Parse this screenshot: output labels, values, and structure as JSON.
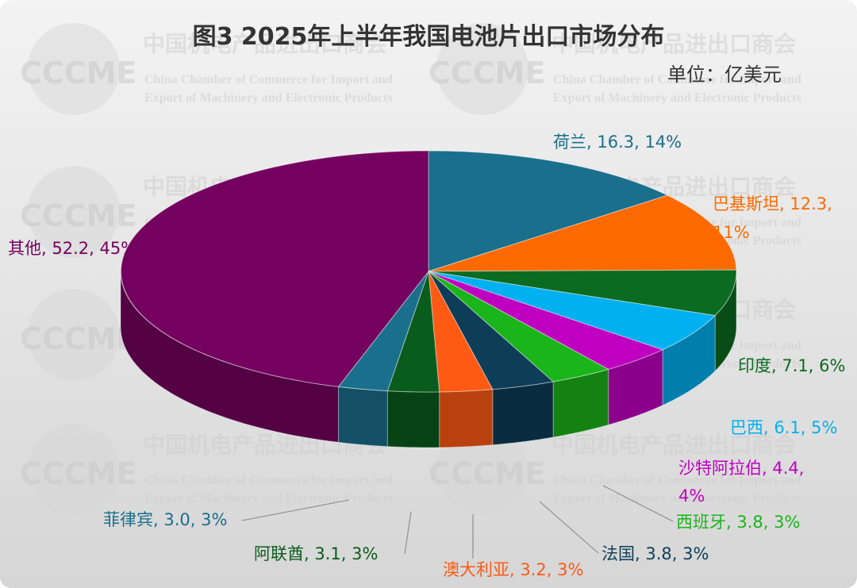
{
  "chart_data": {
    "type": "pie",
    "title": "图3   2025年上半年我国电池片出口市场分布",
    "unit_label": "单位：亿美元",
    "slices": [
      {
        "name": "荷兰",
        "value": 16.3,
        "percent": "14%",
        "label": "荷兰, 16.3, 14%",
        "color": "#1a6f8c"
      },
      {
        "name": "巴基斯坦",
        "value": 12.3,
        "percent": "11%",
        "label_line1": "巴基斯坦, 12.3,",
        "label_line2": "11%",
        "color": "#ff6a00"
      },
      {
        "name": "印度",
        "value": 7.1,
        "percent": "6%",
        "label": "印度, 7.1, 6%",
        "color": "#0b6b21"
      },
      {
        "name": "巴西",
        "value": 6.1,
        "percent": "5%",
        "label": "巴西, 6.1, 5%",
        "color": "#00b0f0"
      },
      {
        "name": "沙特阿拉伯",
        "value": 4.4,
        "percent": "4%",
        "label_line1": "沙特阿拉伯, 4.4,",
        "label_line2": "4%",
        "color": "#c000c0"
      },
      {
        "name": "西班牙",
        "value": 3.8,
        "percent": "3%",
        "label": "西班牙, 3.8, 3%",
        "color": "#1ab51a"
      },
      {
        "name": "法国",
        "value": 3.8,
        "percent": "3%",
        "label": "法国, 3.8, 3%",
        "color": "#0e3d57"
      },
      {
        "name": "澳大利亚",
        "value": 3.2,
        "percent": "3%",
        "label": "澳大利亚, 3.2, 3%",
        "color": "#ff5a14"
      },
      {
        "name": "阿联酋",
        "value": 3.1,
        "percent": "3%",
        "label": "阿联酋, 3.1, 3%",
        "color": "#0a5c1d"
      },
      {
        "name": "菲律宾",
        "value": 3.0,
        "percent": "3%",
        "label": "菲律宾, 3.0, 3%",
        "color": "#1a6f8c"
      },
      {
        "name": "其他",
        "value": 52.2,
        "percent": "45%",
        "label": "其他, 52.2, 45%",
        "color": "#74005f"
      }
    ]
  },
  "watermark": {
    "logo": "CCCME",
    "org_cn": "中国机电产品进出口商会",
    "org_en_line1": "China Chamber of Commerce for Import and",
    "org_en_line2": "Export of Machinery and Electronic Products"
  }
}
